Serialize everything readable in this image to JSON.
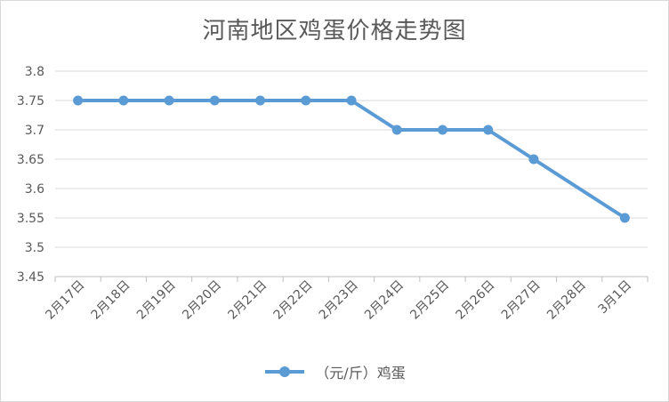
{
  "chart_data": {
    "type": "line",
    "title": "河南地区鸡蛋价格走势图",
    "categories": [
      "2月17日",
      "2月18日",
      "2月19日",
      "2月20日",
      "2月21日",
      "2月22日",
      "2月23日",
      "2月24日",
      "2月25日",
      "2月26日",
      "2月27日",
      "2月28日",
      "3月1日"
    ],
    "series": [
      {
        "name": "（元/斤）鸡蛋",
        "values": [
          3.75,
          3.75,
          3.75,
          3.75,
          3.75,
          3.75,
          3.75,
          3.7,
          3.7,
          3.7,
          3.65,
          null,
          3.55
        ],
        "color": "#5b9bd5"
      }
    ],
    "ylim": [
      3.45,
      3.8
    ],
    "yticks": [
      "3.45",
      "3.5",
      "3.55",
      "3.6",
      "3.65",
      "3.7",
      "3.75",
      "3.8"
    ],
    "grid": true,
    "legend_position": "bottom"
  }
}
